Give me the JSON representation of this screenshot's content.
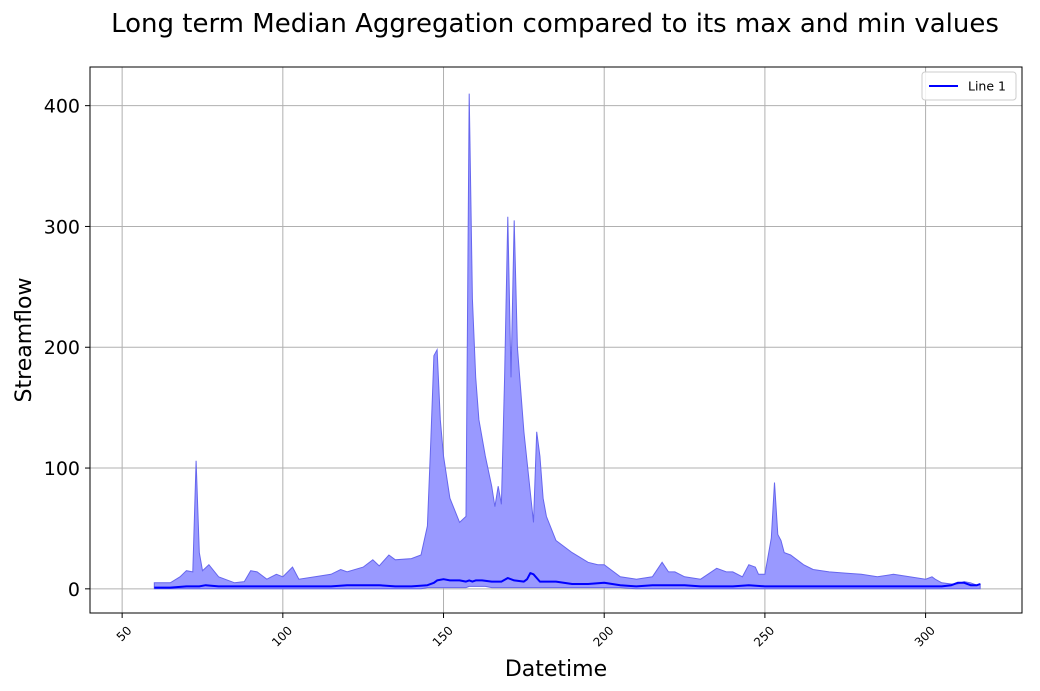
{
  "chart_data": {
    "type": "area",
    "title": "Long term Median Aggregation compared to its max and min values",
    "xlabel": "Datetime",
    "ylabel": "Streamflow",
    "xlim": [
      40,
      330
    ],
    "ylim": [
      -20,
      432
    ],
    "xticks": [
      50,
      100,
      150,
      200,
      250,
      300
    ],
    "yticks": [
      0,
      100,
      200,
      300,
      400
    ],
    "grid": true,
    "legend": {
      "position": "top-right",
      "entries": [
        "Line 1"
      ]
    },
    "colors": {
      "line": "#0000ff",
      "fill": "#9999ff",
      "fill_edge": "#6666ee",
      "grid": "#b0b0b0"
    },
    "series": [
      {
        "name": "Line 1",
        "x": [
          60,
          65,
          70,
          72,
          74,
          76,
          80,
          85,
          90,
          95,
          100,
          105,
          110,
          115,
          120,
          125,
          130,
          135,
          140,
          145,
          147,
          148,
          150,
          152,
          155,
          157,
          158,
          159,
          160,
          162,
          165,
          168,
          170,
          172,
          175,
          176,
          177,
          178,
          180,
          185,
          190,
          195,
          200,
          205,
          210,
          215,
          220,
          225,
          230,
          235,
          240,
          245,
          250,
          255,
          260,
          265,
          270,
          275,
          280,
          285,
          290,
          295,
          300,
          305,
          308,
          310,
          312,
          314,
          316,
          317
        ],
        "y": [
          1,
          1,
          2,
          2,
          2,
          3,
          2,
          2,
          2,
          2,
          2,
          2,
          2,
          2,
          3,
          3,
          3,
          2,
          2,
          3,
          5,
          7,
          8,
          7,
          7,
          6,
          7,
          6,
          7,
          7,
          6,
          6,
          9,
          7,
          6,
          8,
          13,
          12,
          6,
          6,
          4,
          4,
          5,
          3,
          2,
          3,
          3,
          3,
          2,
          2,
          2,
          3,
          2,
          2,
          2,
          2,
          2,
          2,
          2,
          2,
          2,
          2,
          2,
          2,
          3,
          5,
          5,
          3,
          3,
          4
        ]
      }
    ],
    "band": {
      "x": [
        60,
        65,
        68,
        70,
        72,
        73,
        74,
        75,
        77,
        80,
        85,
        88,
        90,
        92,
        95,
        98,
        100,
        103,
        105,
        110,
        115,
        118,
        120,
        125,
        128,
        130,
        133,
        135,
        140,
        143,
        145,
        146,
        147,
        148,
        149,
        150,
        152,
        155,
        157,
        158,
        159,
        160,
        161,
        163,
        165,
        166,
        167,
        168,
        169,
        170,
        171,
        172,
        173,
        175,
        178,
        179,
        180,
        181,
        182,
        185,
        190,
        195,
        198,
        200,
        205,
        210,
        215,
        218,
        220,
        222,
        225,
        230,
        235,
        238,
        240,
        243,
        245,
        247,
        248,
        250,
        252,
        253,
        254,
        255,
        256,
        258,
        262,
        265,
        270,
        275,
        280,
        285,
        290,
        295,
        300,
        302,
        303,
        305,
        308,
        310,
        312,
        314,
        316,
        317
      ],
      "max": [
        5,
        5,
        10,
        15,
        14,
        106,
        30,
        15,
        20,
        10,
        5,
        6,
        15,
        14,
        8,
        12,
        10,
        18,
        8,
        10,
        12,
        16,
        14,
        18,
        24,
        19,
        28,
        24,
        25,
        28,
        52,
        120,
        193,
        198,
        140,
        110,
        75,
        55,
        60,
        410,
        240,
        175,
        140,
        110,
        85,
        68,
        85,
        70,
        175,
        308,
        175,
        305,
        200,
        130,
        55,
        130,
        110,
        75,
        60,
        40,
        30,
        22,
        20,
        20,
        10,
        8,
        10,
        22,
        14,
        14,
        10,
        8,
        17,
        14,
        14,
        10,
        20,
        18,
        12,
        12,
        42,
        88,
        45,
        40,
        30,
        28,
        20,
        16,
        14,
        13,
        12,
        10,
        12,
        10,
        8,
        10,
        8,
        5,
        4,
        4,
        6,
        5,
        3,
        4
      ],
      "min": [
        0,
        0,
        0,
        0,
        0,
        0,
        0,
        0,
        0,
        0,
        0,
        0,
        0,
        0,
        0,
        0,
        0,
        0,
        0,
        0,
        0,
        0,
        0,
        0,
        0,
        0,
        0,
        0,
        0,
        0,
        1,
        1,
        1,
        1,
        1,
        1,
        1,
        1,
        1,
        2,
        2,
        2,
        2,
        2,
        1,
        1,
        1,
        1,
        1,
        1,
        1,
        1,
        1,
        1,
        1,
        1,
        1,
        1,
        1,
        1,
        1,
        1,
        1,
        1,
        1,
        0,
        0,
        0,
        0,
        0,
        0,
        0,
        0,
        0,
        0,
        0,
        0,
        0,
        0,
        0,
        0,
        0,
        0,
        0,
        0,
        0,
        0,
        0,
        0,
        0,
        0,
        0,
        0,
        0,
        0,
        0,
        0,
        0,
        0,
        0,
        0,
        0,
        0,
        0
      ]
    }
  }
}
